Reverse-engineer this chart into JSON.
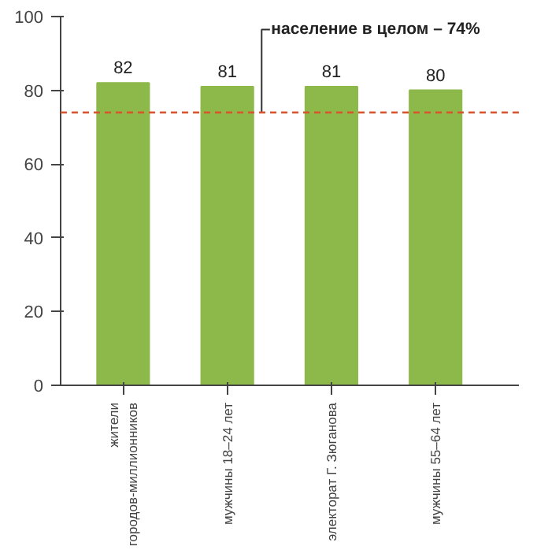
{
  "chart_data": {
    "type": "bar",
    "categories": [
      "жители городов-миллионников",
      "мужчины 18–24 лет",
      "электорат Г. Зюганова",
      "мужчины 55–64 лет"
    ],
    "values": [
      82,
      81,
      81,
      80
    ],
    "color": "#8db94a",
    "data_labels": true,
    "ylim": [
      0,
      100
    ],
    "yticks": [
      0,
      20,
      40,
      60,
      80,
      100
    ],
    "grid": false,
    "ref_lines": [
      {
        "axis": "y",
        "value": 74,
        "label": "население в целом – 74%",
        "color": "#d9542b",
        "line_style": "dashed"
      }
    ]
  }
}
